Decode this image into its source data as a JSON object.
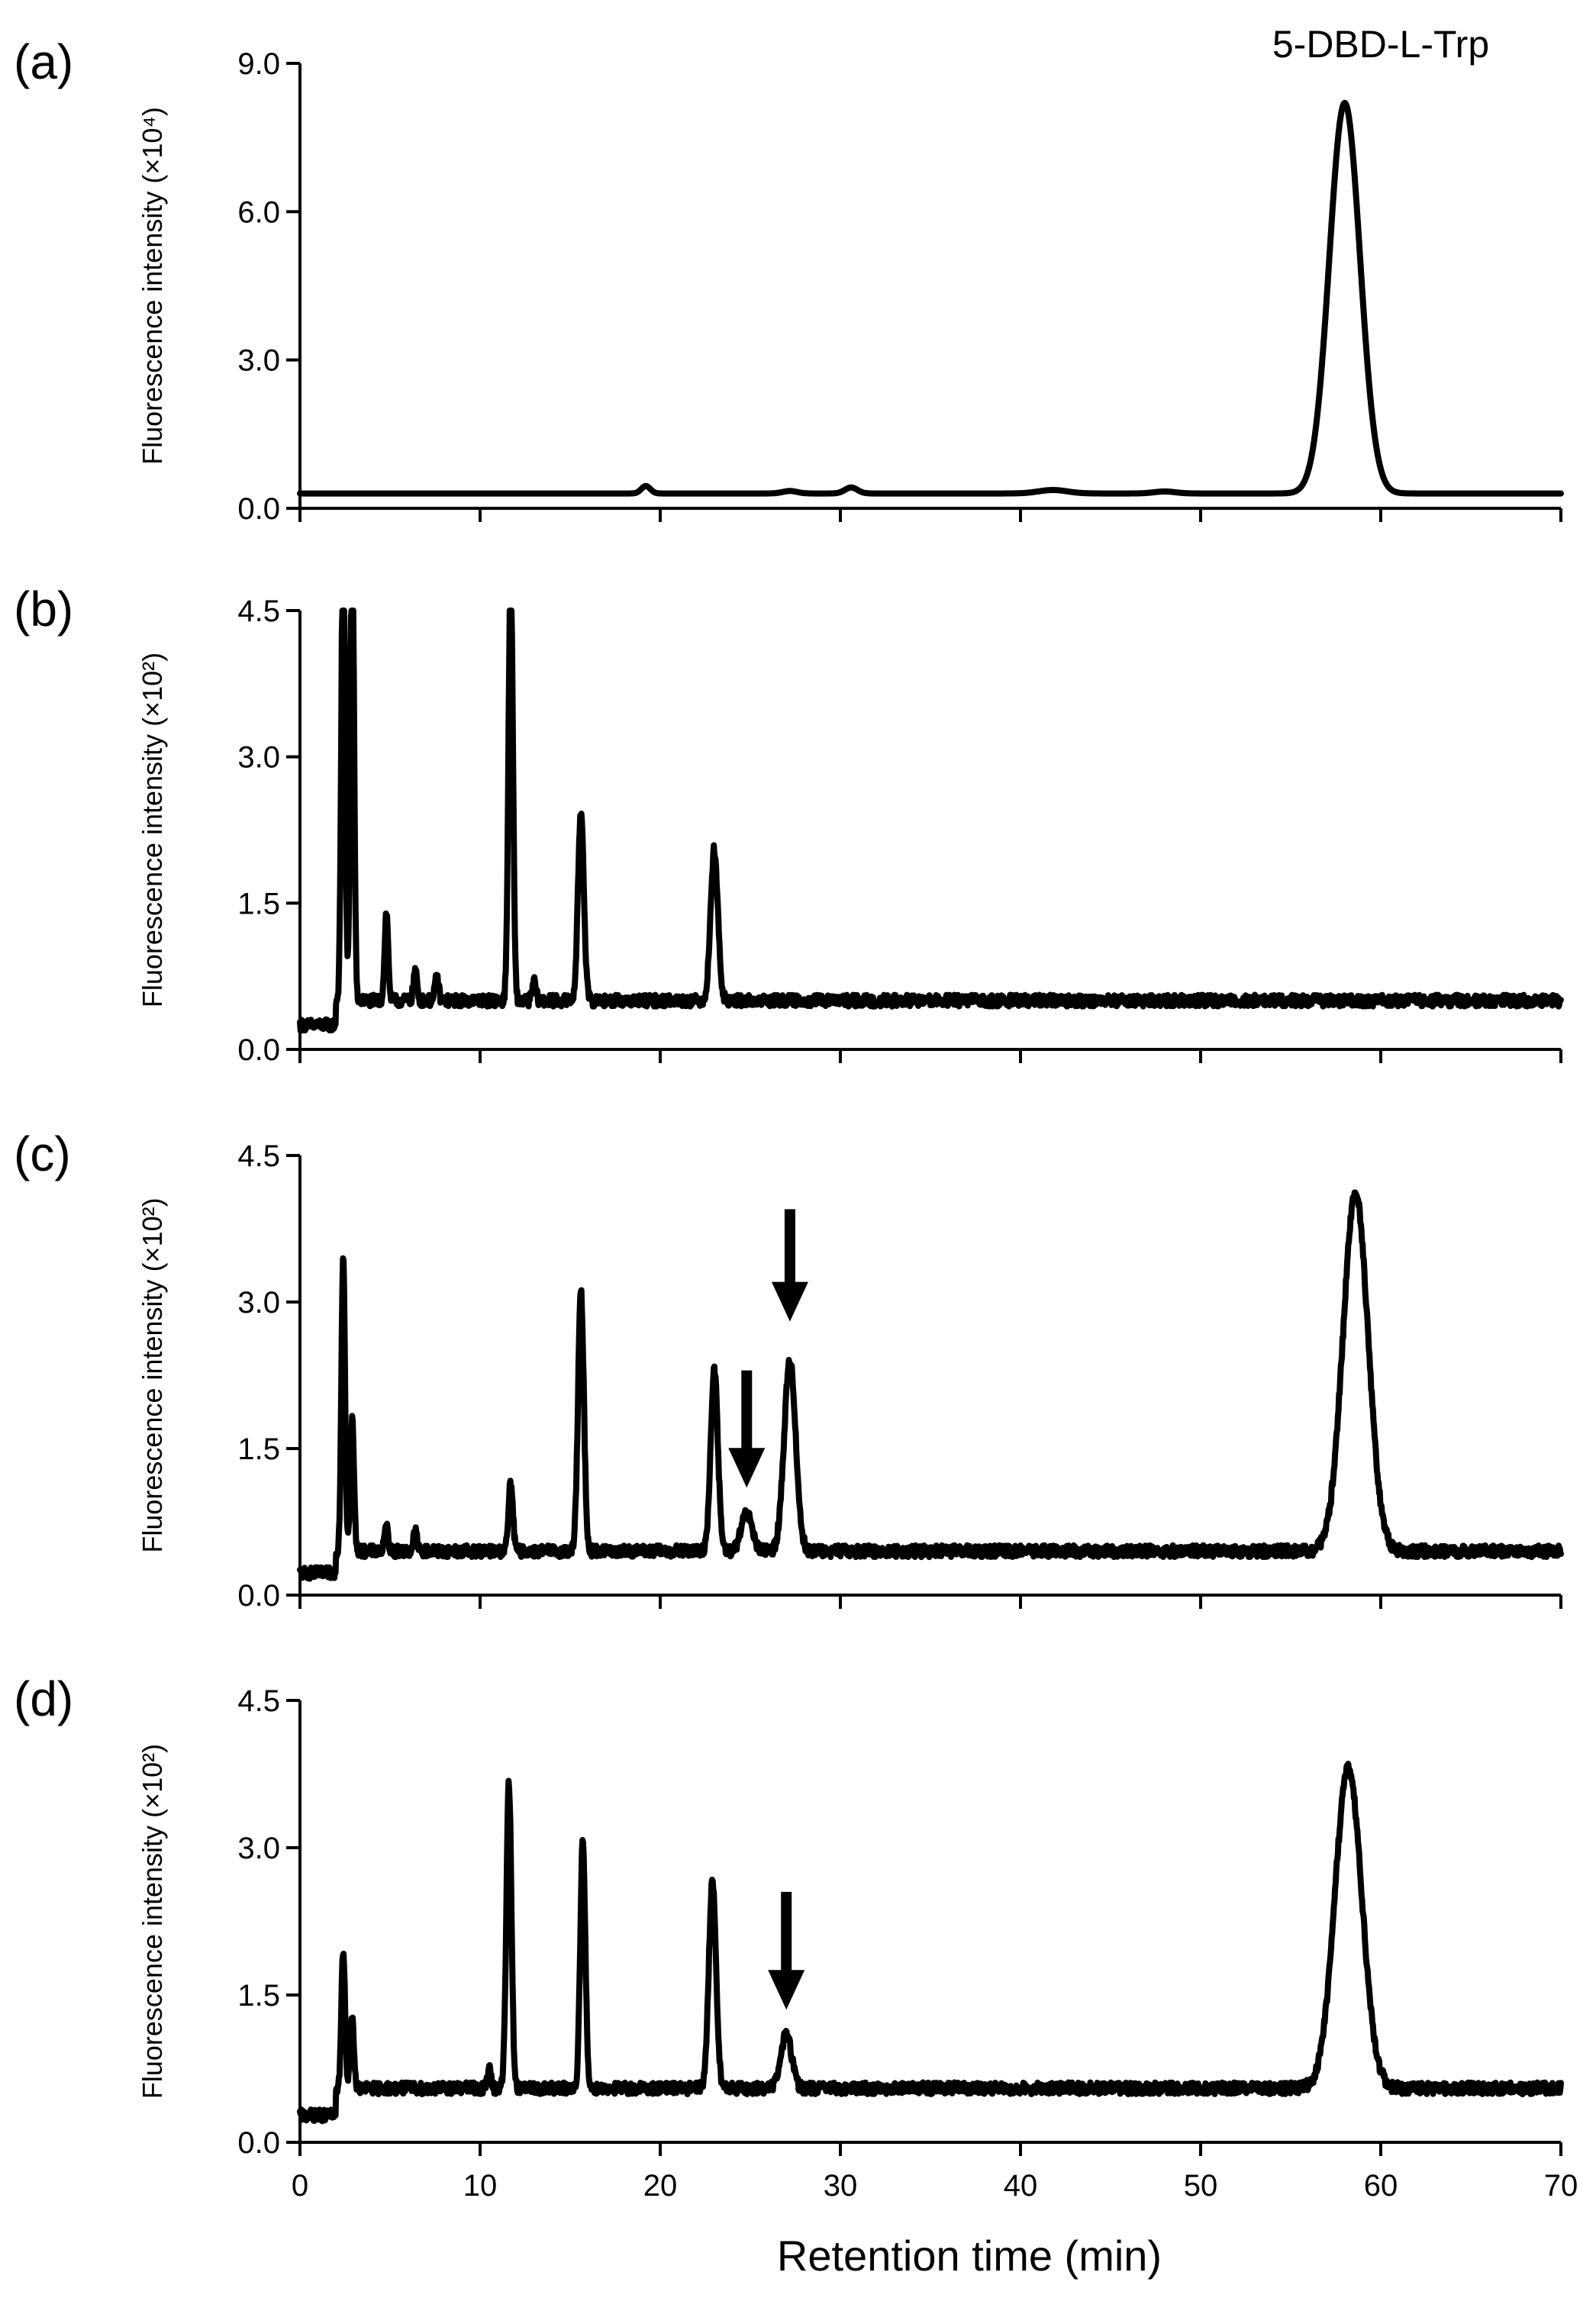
{
  "figure": {
    "xlabel": "Retention time (min)",
    "compound_label": "5-DBD-L-Trp"
  },
  "chart_data": [
    {
      "panel": "(a)",
      "type": "line",
      "ylabel": "Fluorescence intensity (×10⁴)",
      "xlim": [
        0,
        70
      ],
      "ylim": [
        0,
        9.0
      ],
      "yticks": [
        "0.0",
        "3.0",
        "6.0",
        "9.0"
      ],
      "xticks": [
        "0",
        "10",
        "20",
        "30",
        "40",
        "50",
        "60",
        "70"
      ],
      "x_axis_tick_labels_shown": false,
      "annotation": "5-DBD-L-Trp",
      "baseline": 0.3,
      "noise": 0.0,
      "series": [
        {
          "peaks": [
            {
              "rt": 19.2,
              "height": 0.15,
              "width": 0.25
            },
            {
              "rt": 27.2,
              "height": 0.05,
              "width": 0.4
            },
            {
              "rt": 30.6,
              "height": 0.12,
              "width": 0.35
            },
            {
              "rt": 41.8,
              "height": 0.07,
              "width": 0.8
            },
            {
              "rt": 48.0,
              "height": 0.04,
              "width": 0.6
            },
            {
              "rt": 58.0,
              "height": 7.9,
              "width": 0.85
            }
          ]
        }
      ],
      "arrows": []
    },
    {
      "panel": "(b)",
      "type": "line",
      "ylabel": "Fluorescence intensity (×10²)",
      "xlim": [
        0,
        70
      ],
      "ylim": [
        0,
        4.5
      ],
      "yticks": [
        "0.0",
        "1.5",
        "3.0",
        "4.5"
      ],
      "xticks": [
        "0",
        "10",
        "20",
        "30",
        "40",
        "50",
        "60",
        "70"
      ],
      "x_axis_tick_labels_shown": false,
      "baseline": 0.5,
      "noise": 0.06,
      "series": [
        {
          "peaks": [
            {
              "rt": 2.4,
              "height": 5.0,
              "width": 0.1
            },
            {
              "rt": 2.9,
              "height": 5.0,
              "width": 0.1
            },
            {
              "rt": 4.8,
              "height": 0.9,
              "width": 0.1
            },
            {
              "rt": 6.4,
              "height": 0.3,
              "width": 0.1
            },
            {
              "rt": 7.6,
              "height": 0.25,
              "width": 0.1
            },
            {
              "rt": 11.7,
              "height": 4.5,
              "width": 0.12
            },
            {
              "rt": 13.0,
              "height": 0.2,
              "width": 0.1
            },
            {
              "rt": 15.6,
              "height": 1.95,
              "width": 0.16
            },
            {
              "rt": 23.0,
              "height": 1.55,
              "width": 0.2
            }
          ]
        }
      ],
      "arrows": []
    },
    {
      "panel": "(c)",
      "type": "line",
      "ylabel": "Fluorescence intensity (×10²)",
      "xlim": [
        0,
        70
      ],
      "ylim": [
        0,
        4.5
      ],
      "yticks": [
        "0.0",
        "1.5",
        "3.0",
        "4.5"
      ],
      "xticks": [
        "0",
        "10",
        "20",
        "30",
        "40",
        "50",
        "60",
        "70"
      ],
      "x_axis_tick_labels_shown": false,
      "baseline": 0.45,
      "noise": 0.06,
      "series": [
        {
          "peaks": [
            {
              "rt": 2.4,
              "height": 3.05,
              "width": 0.1
            },
            {
              "rt": 2.9,
              "height": 1.35,
              "width": 0.1
            },
            {
              "rt": 4.8,
              "height": 0.25,
              "width": 0.1
            },
            {
              "rt": 6.4,
              "height": 0.2,
              "width": 0.1
            },
            {
              "rt": 11.7,
              "height": 0.7,
              "width": 0.12
            },
            {
              "rt": 15.6,
              "height": 2.65,
              "width": 0.16
            },
            {
              "rt": 23.0,
              "height": 1.85,
              "width": 0.2
            },
            {
              "rt": 24.8,
              "height": 0.38,
              "width": 0.3
            },
            {
              "rt": 27.2,
              "height": 1.95,
              "width": 0.32
            },
            {
              "rt": 58.6,
              "height": 3.65,
              "width": 0.7
            }
          ]
        }
      ],
      "arrows": [
        {
          "rt": 27.2,
          "tip": 2.8,
          "tail": 3.95
        },
        {
          "rt": 24.8,
          "tip": 1.1,
          "tail": 2.3
        }
      ]
    },
    {
      "panel": "(d)",
      "type": "line",
      "ylabel": "Fluorescence intensity (×10²)",
      "xlim": [
        0,
        70
      ],
      "ylim": [
        0,
        4.5
      ],
      "yticks": [
        "0.0",
        "1.5",
        "3.0",
        "4.5"
      ],
      "xticks": [
        "0",
        "10",
        "20",
        "30",
        "40",
        "50",
        "60",
        "70"
      ],
      "x_axis_tick_labels_shown": true,
      "baseline": 0.55,
      "noise": 0.06,
      "series": [
        {
          "peaks": [
            {
              "rt": 2.4,
              "height": 1.4,
              "width": 0.1
            },
            {
              "rt": 2.9,
              "height": 0.7,
              "width": 0.1
            },
            {
              "rt": 10.5,
              "height": 0.2,
              "width": 0.1
            },
            {
              "rt": 11.6,
              "height": 3.1,
              "width": 0.14
            },
            {
              "rt": 15.7,
              "height": 2.5,
              "width": 0.14
            },
            {
              "rt": 22.9,
              "height": 2.1,
              "width": 0.2
            },
            {
              "rt": 27.0,
              "height": 0.55,
              "width": 0.3
            },
            {
              "rt": 58.2,
              "height": 3.25,
              "width": 0.75
            }
          ]
        }
      ],
      "arrows": [
        {
          "rt": 27.0,
          "tip": 1.35,
          "tail": 2.55
        }
      ]
    }
  ]
}
